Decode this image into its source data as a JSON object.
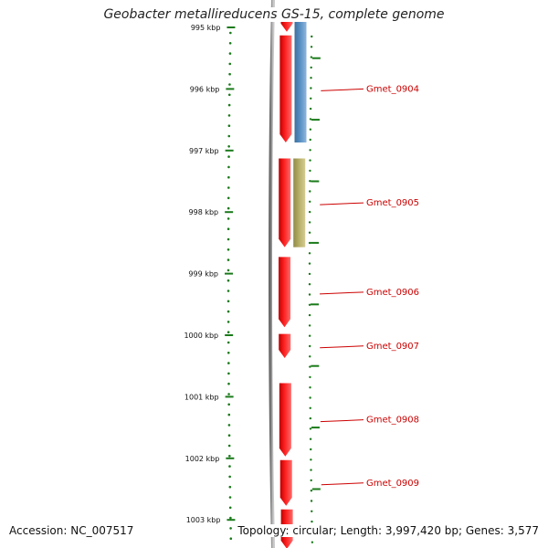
{
  "title": "Geobacter metallireducens GS-15, complete genome",
  "footer": {
    "accession": "Accession: NC_007517",
    "summary": "Topology: circular; Length: 3,997,420 bp; Genes: 3,577"
  },
  "scale": {
    "unit": "kbp",
    "ticks": [
      {
        "kbp": 995,
        "label": "995 kbp"
      },
      {
        "kbp": 996,
        "label": "996 kbp"
      },
      {
        "kbp": 997,
        "label": "997 kbp"
      },
      {
        "kbp": 998,
        "label": "998 kbp"
      },
      {
        "kbp": 999,
        "label": "999 kbp"
      },
      {
        "kbp": 1000,
        "label": "1000 kbp"
      },
      {
        "kbp": 1001,
        "label": "1001 kbp"
      },
      {
        "kbp": 1002,
        "label": "1002 kbp"
      },
      {
        "kbp": 1003,
        "label": "1003 kbp"
      }
    ]
  },
  "colors": {
    "forward": "#ff0000",
    "reverse_blue": "#4f86b8",
    "reverse_olive": "#b8b068",
    "backbone": "#808080",
    "ticks": "#1a7a1a",
    "label": "#cc0000"
  },
  "genes": [
    {
      "name": "",
      "strand": "forward",
      "start_kbp": 994.8,
      "end_kbp": 995.1,
      "color": "forward"
    },
    {
      "name": "Gmet_0904",
      "strand": "forward",
      "start_kbp": 995.1,
      "end_kbp": 996.9,
      "color": "forward"
    },
    {
      "name": "",
      "strand": "reverse",
      "start_kbp": 994.8,
      "end_kbp": 996.9,
      "color": "reverse_blue"
    },
    {
      "name": "Gmet_0905",
      "strand": "forward",
      "start_kbp": 997.1,
      "end_kbp": 998.6,
      "color": "forward"
    },
    {
      "name": "",
      "strand": "reverse",
      "start_kbp": 997.1,
      "end_kbp": 998.6,
      "color": "reverse_olive"
    },
    {
      "name": "Gmet_0906",
      "strand": "forward",
      "start_kbp": 998.7,
      "end_kbp": 999.9,
      "color": "forward"
    },
    {
      "name": "Gmet_0907",
      "strand": "forward",
      "start_kbp": 999.95,
      "end_kbp": 1000.4,
      "color": "forward"
    },
    {
      "name": "Gmet_0908",
      "strand": "forward",
      "start_kbp": 1000.75,
      "end_kbp": 1002.0,
      "color": "forward"
    },
    {
      "name": "Gmet_0909",
      "strand": "forward",
      "start_kbp": 1002.0,
      "end_kbp": 1002.8,
      "color": "forward"
    },
    {
      "name": "",
      "strand": "forward",
      "start_kbp": 1002.8,
      "end_kbp": 1003.5,
      "color": "forward"
    }
  ]
}
